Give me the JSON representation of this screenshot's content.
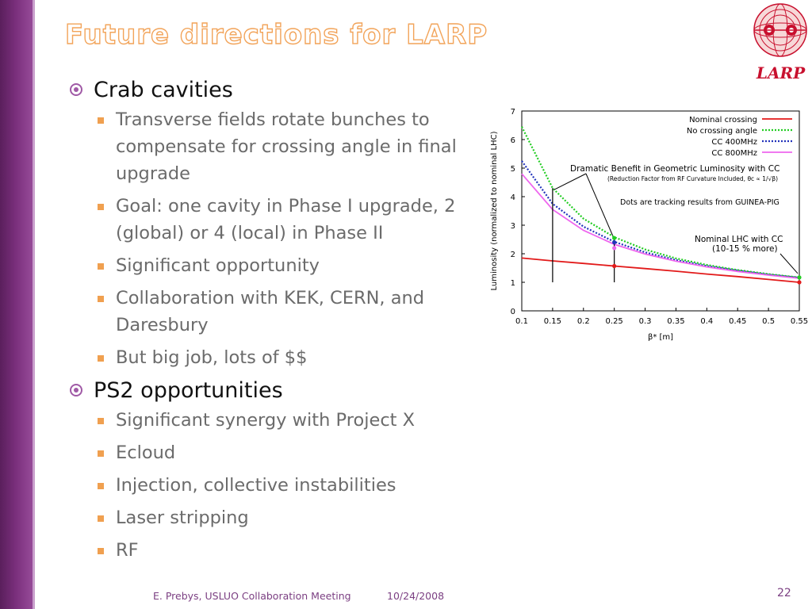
{
  "slide": {
    "title": "Future directions for LARP",
    "logo_text": "LARP",
    "footer_author": "E. Prebys, USLUO Collaboration Meeting",
    "footer_date": "10/24/2008",
    "page_number": "22"
  },
  "bullets": [
    {
      "text": "Crab cavities",
      "sub": [
        "Transverse fields rotate bunches to compensate for crossing angle in final upgrade",
        "Goal: one cavity in Phase I upgrade, 2 (global) or 4 (local) in Phase II",
        "Significant opportunity",
        "Collaboration with KEK, CERN, and Daresbury",
        "But big job, lots of $$"
      ]
    },
    {
      "text": "PS2 opportunities",
      "sub": [
        "Significant synergy with Project X",
        "Ecloud",
        "Injection, collective instabilities",
        "Laser stripping",
        "RF"
      ]
    }
  ],
  "colors": {
    "accent_purple": "#a05aa6",
    "bullet_orange": "#f0a050",
    "title_outline": "#f2a45a"
  },
  "chart_data": {
    "type": "line",
    "xlabel": "β* [m]",
    "ylabel": "Luminosity  (normalized to nominal LHC)",
    "xlim": [
      0.1,
      0.55
    ],
    "ylim": [
      0,
      7
    ],
    "xticks": [
      "0.1",
      "0.15",
      "0.2",
      "0.25",
      "0.3",
      "0.35",
      "0.4",
      "0.45",
      "0.5",
      "0.55"
    ],
    "yticks": [
      "0",
      "1",
      "2",
      "3",
      "4",
      "5",
      "6",
      "7"
    ],
    "legend_position": "top-right",
    "series": [
      {
        "name": "Nominal crossing",
        "color": "#e21a1a",
        "style": "solid",
        "x": [
          0.1,
          0.15,
          0.2,
          0.25,
          0.3,
          0.35,
          0.4,
          0.45,
          0.5,
          0.55
        ],
        "y": [
          1.85,
          1.75,
          1.66,
          1.57,
          1.48,
          1.39,
          1.29,
          1.2,
          1.1,
          1.0
        ]
      },
      {
        "name": "No crossing angle",
        "color": "#22cc22",
        "style": "dotted",
        "x": [
          0.1,
          0.15,
          0.2,
          0.25,
          0.3,
          0.35,
          0.4,
          0.45,
          0.5,
          0.55
        ],
        "y": [
          6.45,
          4.3,
          3.23,
          2.58,
          2.15,
          1.84,
          1.61,
          1.43,
          1.29,
          1.17
        ]
      },
      {
        "name": "CC 400MHz",
        "color": "#2233bb",
        "style": "dotted",
        "x": [
          0.1,
          0.15,
          0.2,
          0.25,
          0.3,
          0.35,
          0.4,
          0.45,
          0.5,
          0.55
        ],
        "y": [
          5.25,
          3.75,
          2.95,
          2.42,
          2.05,
          1.78,
          1.57,
          1.41,
          1.27,
          1.16
        ]
      },
      {
        "name": "CC 800MHz",
        "color": "#ee66ee",
        "style": "solid",
        "x": [
          0.1,
          0.15,
          0.2,
          0.25,
          0.3,
          0.35,
          0.4,
          0.45,
          0.5,
          0.55
        ],
        "y": [
          4.8,
          3.55,
          2.82,
          2.33,
          1.99,
          1.74,
          1.54,
          1.38,
          1.25,
          1.14
        ]
      }
    ],
    "annotations": [
      "Dramatic Benefit in Geometric Luminosity with CC",
      "(Reduction Factor from RF Curvature Included, θc ∝ 1/√β)",
      "Dots are tracking results from GUINEA-PIG",
      "Nominal LHC with CC",
      "(10-15 % more)"
    ],
    "tracking_points": [
      {
        "x": 0.25,
        "y": 2.55,
        "color": "#22cc22"
      },
      {
        "x": 0.25,
        "y": 2.4,
        "color": "#2233bb"
      },
      {
        "x": 0.25,
        "y": 2.2,
        "color": "#ee66ee"
      },
      {
        "x": 0.25,
        "y": 1.57,
        "color": "#e21a1a"
      },
      {
        "x": 0.55,
        "y": 1.17,
        "color": "#22cc22"
      },
      {
        "x": 0.55,
        "y": 1.0,
        "color": "#e21a1a"
      }
    ]
  }
}
